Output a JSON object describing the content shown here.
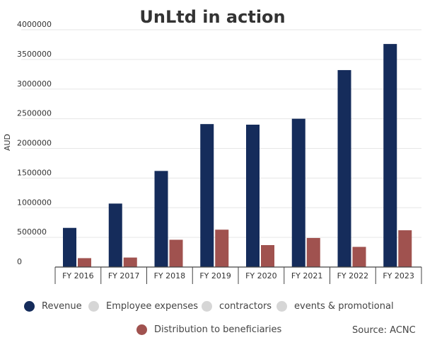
{
  "chart_data": {
    "type": "bar",
    "title": "UnLtd in action",
    "xlabel": "",
    "ylabel": "AUD",
    "ylim": [
      0,
      4000000
    ],
    "yticks": [
      "0",
      "500000",
      "1000000",
      "1500000",
      "2000000",
      "2500000",
      "3000000",
      "3500000",
      "4000000"
    ],
    "categories": [
      "FY 2016",
      "FY 2017",
      "FY 2018",
      "FY 2019",
      "FY 2020",
      "FY 2021",
      "FY 2022",
      "FY 2023"
    ],
    "grid": "horizontal",
    "legend_position": "bottom",
    "series": [
      {
        "name": "Revenue",
        "color": "#152c5b",
        "values": [
          660000,
          1070000,
          1620000,
          2410000,
          2400000,
          2500000,
          3320000,
          3760000
        ]
      },
      {
        "name": "Distribution to beneficiaries",
        "color": "#a0524f",
        "values": [
          150000,
          160000,
          460000,
          630000,
          370000,
          490000,
          340000,
          620000
        ]
      }
    ],
    "legend": [
      {
        "name": "Revenue",
        "color": "#152c5b"
      },
      {
        "name": "Employee expenses",
        "color": "#d6d6d6"
      },
      {
        "name": "contractors",
        "color": "#d6d6d6"
      },
      {
        "name": "events & promotional",
        "color": "#d6d6d6"
      },
      {
        "name": "Distribution to beneficiaries",
        "color": "#a0524f"
      }
    ],
    "source": "Source: ACNC"
  }
}
